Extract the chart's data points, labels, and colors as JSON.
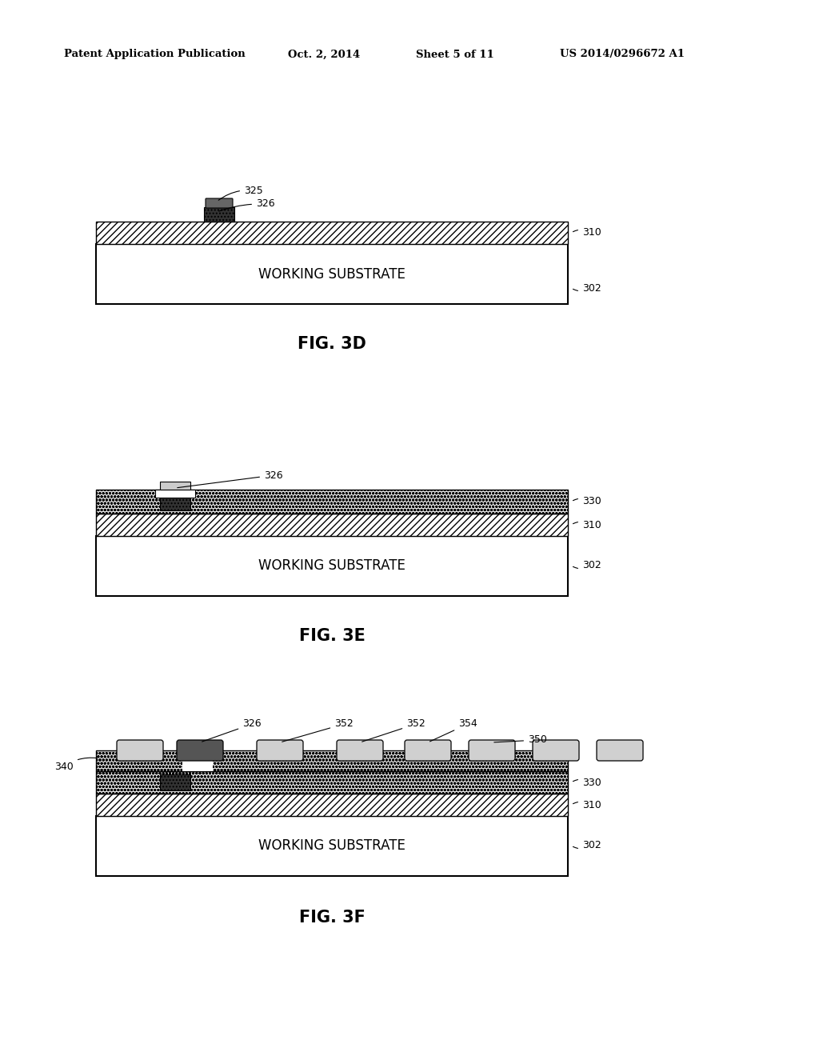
{
  "bg_color": "#ffffff",
  "header_text": "Patent Application Publication",
  "header_date": "Oct. 2, 2014",
  "header_sheet": "Sheet 5 of 11",
  "header_patent": "US 2014/0296672 A1",
  "substrate_label": "WORKING SUBSTRATE"
}
